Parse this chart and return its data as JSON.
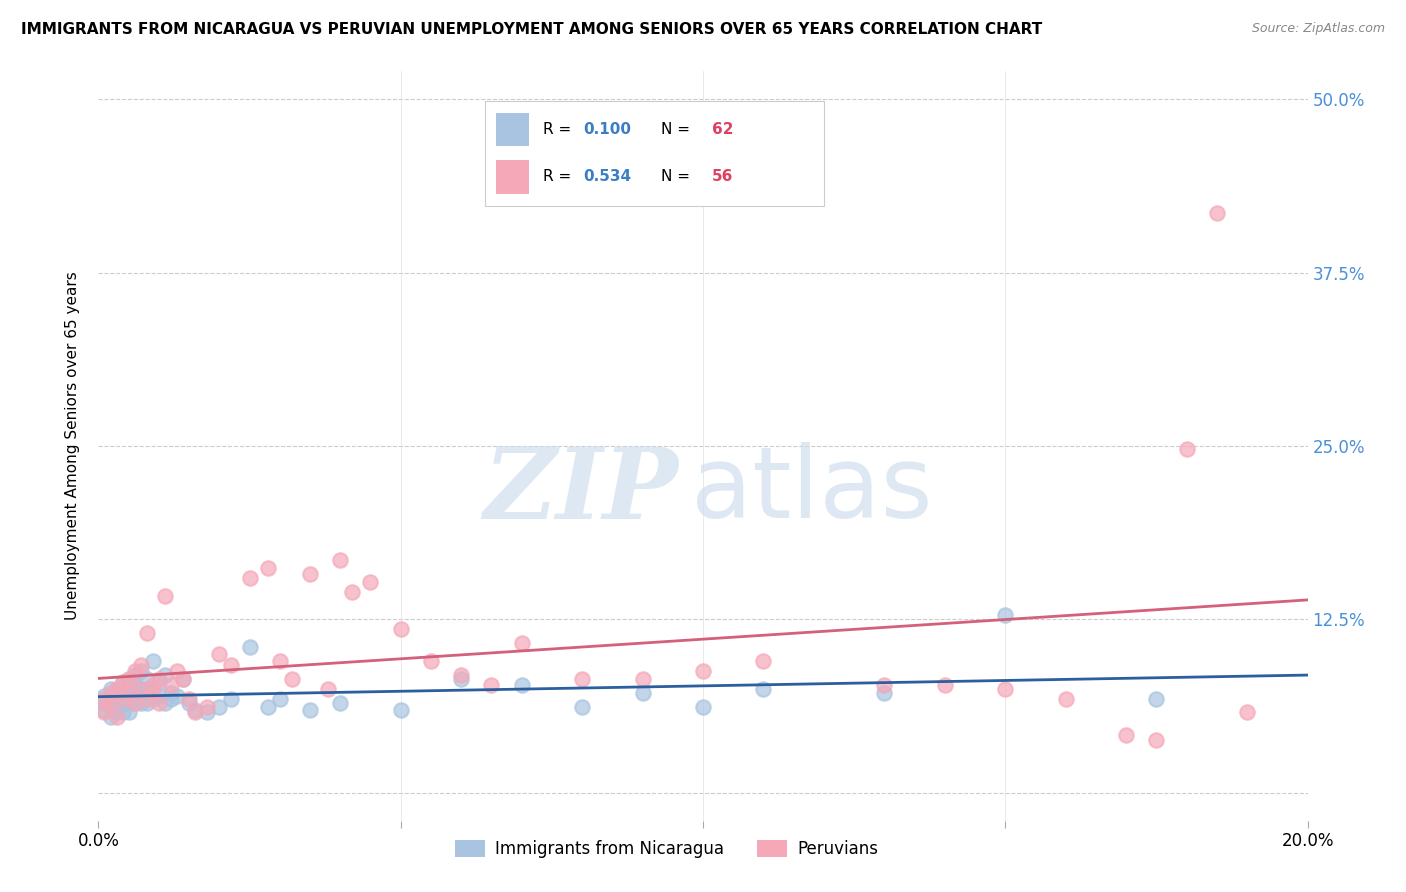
{
  "title": "IMMIGRANTS FROM NICARAGUA VS PERUVIAN UNEMPLOYMENT AMONG SENIORS OVER 65 YEARS CORRELATION CHART",
  "source": "Source: ZipAtlas.com",
  "ylabel": "Unemployment Among Seniors over 65 years",
  "xlim": [
    0.0,
    0.2
  ],
  "ylim": [
    -0.02,
    0.52
  ],
  "xticks": [
    0.0,
    0.05,
    0.1,
    0.15,
    0.2
  ],
  "yticks": [
    0.0,
    0.125,
    0.25,
    0.375,
    0.5
  ],
  "yticklabels": [
    "",
    "12.5%",
    "25.0%",
    "37.5%",
    "50.0%"
  ],
  "blue_R": 0.1,
  "blue_N": 62,
  "pink_R": 0.534,
  "pink_N": 56,
  "blue_color": "#a8c4e0",
  "pink_color": "#f4a8b8",
  "blue_line_color": "#2c5f9e",
  "pink_line_color": "#d4607a",
  "legend_R_color": "#3a7ec8",
  "legend_N_color": "#e04060",
  "blue_scatter_x": [
    0.001,
    0.001,
    0.001,
    0.002,
    0.002,
    0.002,
    0.002,
    0.003,
    0.003,
    0.003,
    0.003,
    0.003,
    0.004,
    0.004,
    0.004,
    0.004,
    0.005,
    0.005,
    0.005,
    0.005,
    0.005,
    0.006,
    0.006,
    0.006,
    0.006,
    0.007,
    0.007,
    0.007,
    0.007,
    0.008,
    0.008,
    0.008,
    0.009,
    0.009,
    0.01,
    0.01,
    0.011,
    0.011,
    0.012,
    0.012,
    0.013,
    0.014,
    0.015,
    0.016,
    0.018,
    0.02,
    0.022,
    0.025,
    0.028,
    0.03,
    0.035,
    0.04,
    0.05,
    0.06,
    0.07,
    0.08,
    0.09,
    0.1,
    0.11,
    0.13,
    0.15,
    0.175
  ],
  "blue_scatter_y": [
    0.065,
    0.07,
    0.06,
    0.068,
    0.055,
    0.075,
    0.062,
    0.058,
    0.072,
    0.068,
    0.06,
    0.075,
    0.08,
    0.065,
    0.058,
    0.072,
    0.068,
    0.075,
    0.082,
    0.058,
    0.065,
    0.078,
    0.065,
    0.07,
    0.085,
    0.075,
    0.065,
    0.088,
    0.072,
    0.082,
    0.065,
    0.075,
    0.068,
    0.095,
    0.07,
    0.08,
    0.065,
    0.085,
    0.068,
    0.072,
    0.07,
    0.082,
    0.065,
    0.06,
    0.058,
    0.062,
    0.068,
    0.105,
    0.062,
    0.068,
    0.06,
    0.065,
    0.06,
    0.082,
    0.078,
    0.062,
    0.072,
    0.062,
    0.075,
    0.072,
    0.128,
    0.068
  ],
  "pink_scatter_x": [
    0.001,
    0.001,
    0.002,
    0.002,
    0.003,
    0.003,
    0.004,
    0.004,
    0.005,
    0.005,
    0.006,
    0.006,
    0.007,
    0.007,
    0.008,
    0.008,
    0.009,
    0.009,
    0.01,
    0.01,
    0.011,
    0.012,
    0.013,
    0.014,
    0.015,
    0.016,
    0.018,
    0.02,
    0.022,
    0.025,
    0.028,
    0.03,
    0.032,
    0.035,
    0.038,
    0.04,
    0.042,
    0.045,
    0.05,
    0.055,
    0.06,
    0.065,
    0.07,
    0.08,
    0.09,
    0.1,
    0.11,
    0.13,
    0.14,
    0.15,
    0.16,
    0.17,
    0.175,
    0.18,
    0.185,
    0.19
  ],
  "pink_scatter_y": [
    0.068,
    0.058,
    0.072,
    0.065,
    0.075,
    0.055,
    0.08,
    0.068,
    0.082,
    0.072,
    0.088,
    0.065,
    0.075,
    0.092,
    0.068,
    0.115,
    0.078,
    0.072,
    0.082,
    0.065,
    0.142,
    0.078,
    0.088,
    0.082,
    0.068,
    0.058,
    0.062,
    0.1,
    0.092,
    0.155,
    0.162,
    0.095,
    0.082,
    0.158,
    0.075,
    0.168,
    0.145,
    0.152,
    0.118,
    0.095,
    0.085,
    0.078,
    0.108,
    0.082,
    0.082,
    0.088,
    0.095,
    0.078,
    0.078,
    0.075,
    0.068,
    0.042,
    0.038,
    0.248,
    0.418,
    0.058
  ]
}
